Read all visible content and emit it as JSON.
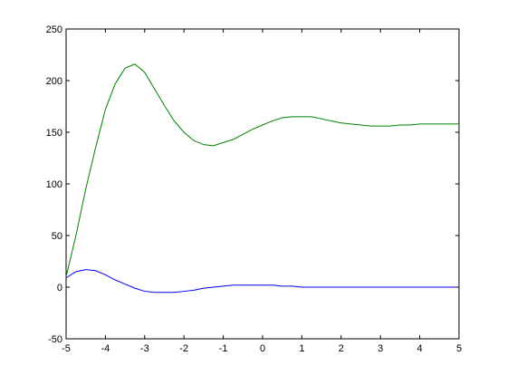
{
  "chart_data": {
    "type": "line",
    "title": "",
    "xlabel": "",
    "ylabel": "",
    "xlim": [
      -5,
      5
    ],
    "ylim": [
      -50,
      250
    ],
    "grid": false,
    "legend": "none",
    "x_ticks": [
      -5,
      -4,
      -3,
      -2,
      -1,
      0,
      1,
      2,
      3,
      4,
      5
    ],
    "x_tick_labels": [
      "-5",
      "-4",
      "-3",
      "-2",
      "-1",
      "0",
      "1",
      "2",
      "3",
      "4",
      "5"
    ],
    "y_ticks": [
      -50,
      0,
      50,
      100,
      150,
      200,
      250
    ],
    "y_tick_labels": [
      "-50",
      "0",
      "50",
      "100",
      "150",
      "200",
      "250"
    ],
    "series": [
      {
        "color": "#008000",
        "x": [
          -5.0,
          -4.75,
          -4.5,
          -4.25,
          -4.0,
          -3.75,
          -3.5,
          -3.25,
          -3.0,
          -2.75,
          -2.5,
          -2.25,
          -2.0,
          -1.75,
          -1.5,
          -1.25,
          -1.0,
          -0.75,
          -0.5,
          -0.25,
          0.0,
          0.25,
          0.5,
          0.75,
          1.0,
          1.25,
          1.5,
          1.75,
          2.0,
          2.25,
          2.5,
          2.75,
          3.0,
          3.25,
          3.5,
          3.75,
          4.0,
          4.25,
          4.5,
          4.75,
          5.0
        ],
        "y": [
          10,
          50,
          95,
          135,
          172,
          197,
          212,
          216,
          208,
          192,
          176,
          161,
          150,
          142,
          138,
          137,
          140,
          143,
          148,
          153,
          157,
          161,
          164,
          165,
          165,
          165,
          163,
          161,
          159,
          158,
          157,
          156,
          156,
          156,
          157,
          157,
          158,
          158,
          158,
          158,
          158
        ]
      },
      {
        "color": "#0000ff",
        "x": [
          -5.0,
          -4.75,
          -4.5,
          -4.25,
          -4.0,
          -3.75,
          -3.5,
          -3.25,
          -3.0,
          -2.75,
          -2.5,
          -2.25,
          -2.0,
          -1.75,
          -1.5,
          -1.25,
          -1.0,
          -0.75,
          -0.5,
          -0.25,
          0.0,
          0.25,
          0.5,
          0.75,
          1.0,
          1.25,
          1.5,
          1.75,
          2.0,
          2.25,
          2.5,
          2.75,
          3.0,
          3.25,
          3.5,
          3.75,
          4.0,
          4.25,
          4.5,
          4.75,
          5.0
        ],
        "y": [
          9,
          15,
          17,
          16,
          12,
          7,
          3,
          -1,
          -4,
          -5,
          -5,
          -5,
          -4,
          -3,
          -1,
          0,
          1,
          2,
          2,
          2,
          2,
          2,
          1,
          1,
          0,
          0,
          0,
          0,
          0,
          0,
          0,
          0,
          0,
          0,
          0,
          0,
          0,
          0,
          0,
          0,
          0
        ]
      }
    ]
  }
}
